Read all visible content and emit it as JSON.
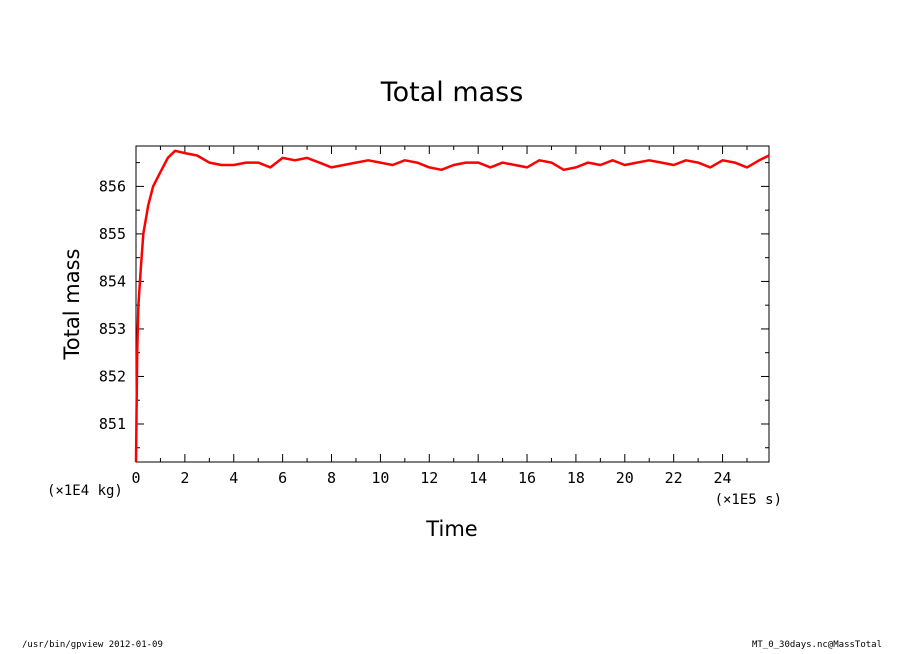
{
  "chart_data": {
    "type": "line",
    "title": "Total mass",
    "xlabel": "Time",
    "ylabel": "Total mass",
    "x_scale": "(×1E5 s)",
    "y_scale": "(×1E4 kg)",
    "xlim": [
      0,
      25.9
    ],
    "ylim": [
      850.2,
      856.85
    ],
    "xticks": [
      "0",
      "2",
      "4",
      "6",
      "8",
      "10",
      "12",
      "14",
      "16",
      "18",
      "20",
      "22",
      "24"
    ],
    "yticks": [
      "851",
      "852",
      "853",
      "854",
      "855",
      "856"
    ],
    "grid": false,
    "series": [
      {
        "color": "#ff0000",
        "x": [
          0,
          0.05,
          0.1,
          0.2,
          0.3,
          0.5,
          0.7,
          1.0,
          1.3,
          1.6,
          2.0,
          2.5,
          3.0,
          3.5,
          4.0,
          4.5,
          5.0,
          5.5,
          6.0,
          6.5,
          7.0,
          7.5,
          8.0,
          8.5,
          9.0,
          9.5,
          10.0,
          10.5,
          11.0,
          11.5,
          12.0,
          12.5,
          13.0,
          13.5,
          14.0,
          14.5,
          15.0,
          15.5,
          16.0,
          16.5,
          17.0,
          17.5,
          18.0,
          18.5,
          19.0,
          19.5,
          20.0,
          20.5,
          21.0,
          21.5,
          22.0,
          22.5,
          23.0,
          23.5,
          24.0,
          24.5,
          25.0,
          25.5,
          25.9
        ],
        "y": [
          850.2,
          852.5,
          853.5,
          854.3,
          855.0,
          855.6,
          856.0,
          856.3,
          856.6,
          856.75,
          856.7,
          856.65,
          856.5,
          856.45,
          856.45,
          856.5,
          856.5,
          856.4,
          856.6,
          856.55,
          856.6,
          856.5,
          856.4,
          856.45,
          856.5,
          856.55,
          856.5,
          856.45,
          856.55,
          856.5,
          856.4,
          856.35,
          856.45,
          856.5,
          856.5,
          856.4,
          856.5,
          856.45,
          856.4,
          856.55,
          856.5,
          856.35,
          856.4,
          856.5,
          856.45,
          856.55,
          856.45,
          856.5,
          856.55,
          856.5,
          856.45,
          856.55,
          856.5,
          856.4,
          856.55,
          856.5,
          856.4,
          856.55,
          856.65
        ]
      }
    ]
  },
  "footer": {
    "left": "/usr/bin/gpview   2012-01-09",
    "right": "MT_0_30days.nc@MassTotal"
  }
}
